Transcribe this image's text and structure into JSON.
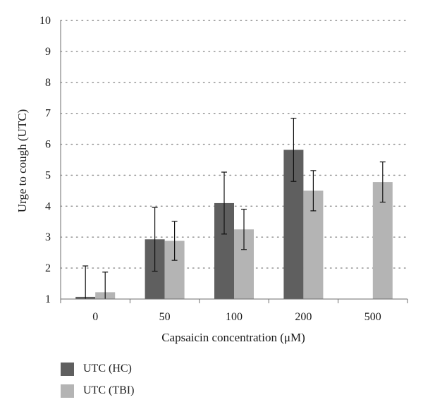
{
  "chart_data": {
    "type": "bar",
    "xlabel": "Capsaicin concentration (μM)",
    "ylabel": "Urge to cough (UTC)",
    "categories": [
      "0",
      "50",
      "100",
      "200",
      "500"
    ],
    "ylim": [
      1,
      10
    ],
    "yticks": [
      1,
      2,
      3,
      4,
      5,
      6,
      7,
      8,
      9,
      10
    ],
    "grid": "horizontal dotted",
    "legend_position": "bottom-left",
    "series": [
      {
        "name": "UTC (HC)",
        "color": "#5f5f5f",
        "values": [
          1.07,
          2.93,
          4.1,
          5.82,
          null
        ],
        "error": [
          1.0,
          1.03,
          1.0,
          1.02,
          null
        ]
      },
      {
        "name": "UTC (TBI)",
        "color": "#b4b4b4",
        "values": [
          1.22,
          2.88,
          3.25,
          4.5,
          4.78
        ],
        "error": [
          0.65,
          0.63,
          0.65,
          0.65,
          0.65
        ]
      }
    ]
  }
}
